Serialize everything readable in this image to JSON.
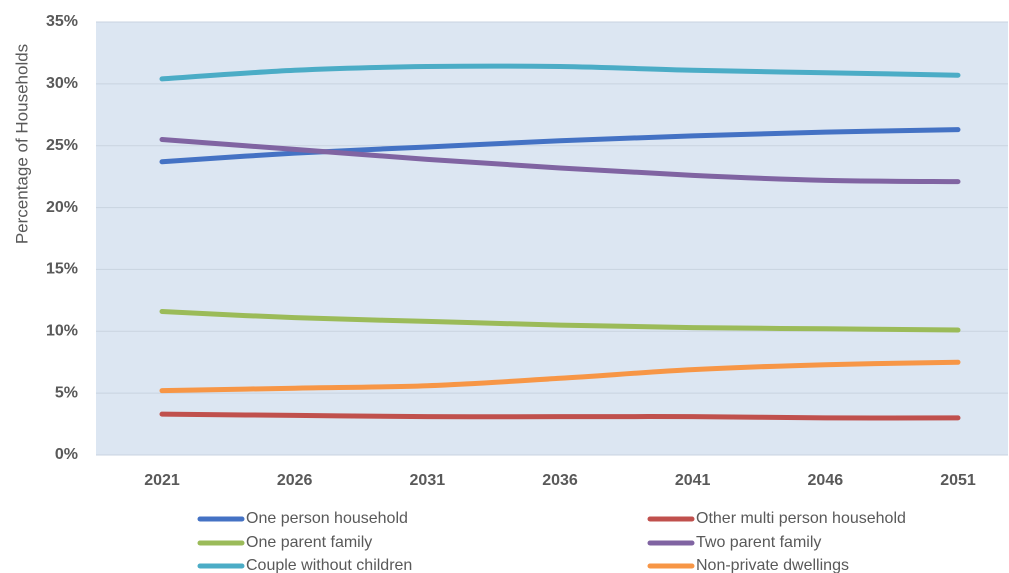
{
  "chart_data": {
    "type": "line",
    "title": "",
    "xlabel": "",
    "ylabel": "Percentage of Households",
    "x": [
      "2021",
      "2026",
      "2031",
      "2036",
      "2041",
      "2046",
      "2051"
    ],
    "ylim": [
      0,
      35
    ],
    "y_ticks": [
      "0%",
      "5%",
      "10%",
      "15%",
      "20%",
      "25%",
      "30%",
      "35%"
    ],
    "y_tick_values": [
      0,
      5,
      10,
      15,
      20,
      25,
      30,
      35
    ],
    "grid": "horizontal",
    "legend_position": "bottom",
    "series": [
      {
        "name": "One person household",
        "color": "#4472C4",
        "values": [
          23.7,
          24.4,
          24.9,
          25.4,
          25.8,
          26.1,
          26.3
        ]
      },
      {
        "name": "Other multi person household",
        "color": "#C0504D",
        "values": [
          3.3,
          3.2,
          3.1,
          3.1,
          3.1,
          3.0,
          3.0
        ]
      },
      {
        "name": "One parent family",
        "color": "#9BBB59",
        "values": [
          11.6,
          11.1,
          10.8,
          10.5,
          10.3,
          10.2,
          10.1
        ]
      },
      {
        "name": "Two parent family",
        "color": "#8064A2",
        "values": [
          25.5,
          24.7,
          23.9,
          23.2,
          22.6,
          22.2,
          22.1
        ]
      },
      {
        "name": "Couple without children",
        "color": "#4BACC6",
        "values": [
          30.4,
          31.1,
          31.4,
          31.4,
          31.1,
          30.9,
          30.7
        ]
      },
      {
        "name": "Non-private dwellings",
        "color": "#F79646",
        "values": [
          5.2,
          5.4,
          5.6,
          6.2,
          6.9,
          7.3,
          7.5
        ]
      }
    ]
  }
}
